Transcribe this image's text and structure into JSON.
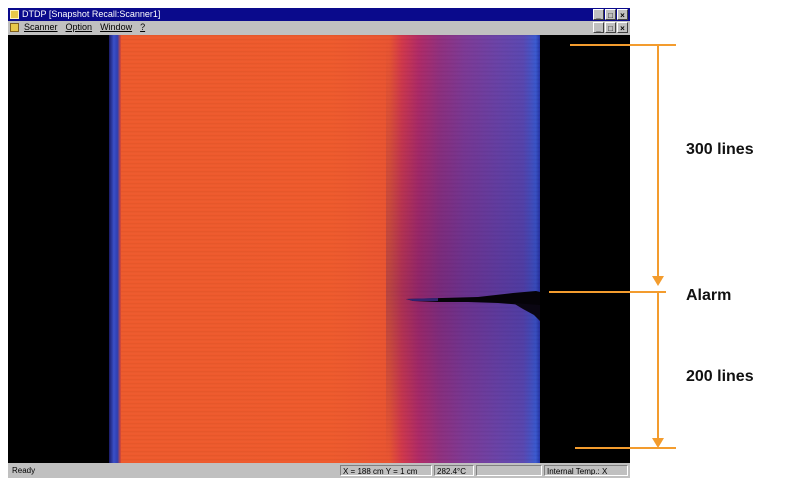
{
  "window": {
    "title": "DTDP   [Snapshot Recall:Scanner1]",
    "controls": [
      "_",
      "□",
      "×"
    ]
  },
  "menu": {
    "items": [
      "Scanner",
      "Option",
      "Window",
      "?"
    ]
  },
  "status": {
    "ready": "Ready",
    "coords": "X = 188 cm  Y = 1 cm",
    "temperature": "282.4°C",
    "blank": "",
    "internal_temp": "Internal Temp.: X"
  },
  "annotations": {
    "top_label": "300 lines",
    "alarm_label": "Alarm",
    "bottom_label": "200 lines"
  },
  "colors": {
    "annotation_line": "#f39c2e",
    "hot_zone": "#ee5a2c",
    "cool_zone": "#6a43a8"
  }
}
